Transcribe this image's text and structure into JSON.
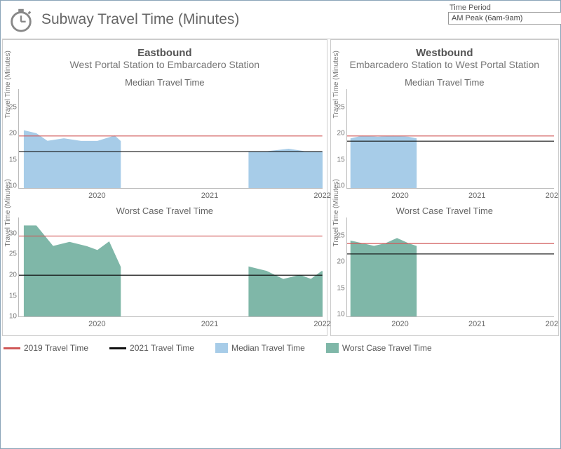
{
  "header": {
    "title": "Subway Travel Time (Minutes)",
    "time_period_label": "Time Period",
    "time_period_value": "AM Peak (6am-9am)"
  },
  "colors": {
    "median_area": "#a7cce8",
    "worst_area": "#7fb7a8",
    "line_2019": "#d05858",
    "line_2021": "#111111",
    "axis": "#bbbbbb",
    "text": "#666666"
  },
  "legend": [
    {
      "type": "line",
      "color": "#d05858",
      "label": "2019 Travel Time"
    },
    {
      "type": "line",
      "color": "#111111",
      "label": "2021 Travel Time"
    },
    {
      "type": "box",
      "color": "#a7cce8",
      "label": "Median Travel Time"
    },
    {
      "type": "box",
      "color": "#7fb7a8",
      "label": "Worst Case Travel Time"
    }
  ],
  "panels": [
    {
      "direction": "Eastbound",
      "subtitle": "West Portal Station to Embarcadero Station",
      "charts": [
        {
          "title": "Median Travel Time",
          "ylabel": "Travel Time (Minutes)",
          "ylim": [
            8,
            27
          ],
          "yticks": [
            10,
            15,
            20,
            25
          ],
          "xlim": [
            2019.3,
            2022.0
          ],
          "xticks": [
            2020,
            2021,
            2022
          ],
          "fill_color": "#a7cce8",
          "segments": [
            {
              "x": [
                2019.35,
                2019.45,
                2019.55,
                2019.7,
                2019.85,
                2020.0,
                2020.15,
                2020.2
              ],
              "y": [
                19,
                18.5,
                17,
                17.5,
                17,
                17,
                18,
                17
              ]
            },
            {
              "x": [
                2021.35,
                2021.5,
                2021.7,
                2021.85,
                2022.0
              ],
              "y": [
                15,
                15,
                15.5,
                15,
                15
              ]
            }
          ],
          "ref_lines": [
            {
              "color": "#d05858",
              "y": 18
            },
            {
              "color": "#111111",
              "y": 15
            }
          ]
        },
        {
          "title": "Worst Case Travel Time",
          "ylabel": "Travel Time (Minutes)",
          "ylim": [
            8,
            32
          ],
          "yticks": [
            10,
            15,
            20,
            25,
            30
          ],
          "xlim": [
            2019.3,
            2022.0
          ],
          "xticks": [
            2020,
            2021,
            2022
          ],
          "fill_color": "#7fb7a8",
          "segments": [
            {
              "x": [
                2019.35,
                2019.45,
                2019.6,
                2019.75,
                2019.9,
                2020.0,
                2020.1,
                2020.2
              ],
              "y": [
                30,
                30,
                25,
                26,
                25,
                24,
                26,
                20
              ]
            },
            {
              "x": [
                2021.35,
                2021.5,
                2021.65,
                2021.8,
                2021.9,
                2022.0
              ],
              "y": [
                20,
                19,
                17,
                18,
                17,
                19
              ]
            }
          ],
          "ref_lines": [
            {
              "color": "#d05858",
              "y": 27.5
            },
            {
              "color": "#111111",
              "y": 18
            }
          ]
        }
      ]
    },
    {
      "direction": "Westbound",
      "subtitle": "Embarcadero Station to West Portal Station",
      "charts": [
        {
          "title": "Median Travel Time",
          "ylabel": "Travel Time (Minutes)",
          "ylim": [
            8,
            27
          ],
          "yticks": [
            10,
            15,
            20,
            25
          ],
          "xlim": [
            2019.3,
            2022.0
          ],
          "xticks": [
            2020,
            2021,
            2022
          ],
          "fill_color": "#a7cce8",
          "segments": [
            {
              "x": [
                2019.35,
                2019.5,
                2019.7,
                2019.9,
                2020.1,
                2020.2
              ],
              "y": [
                17.5,
                18,
                17.8,
                18,
                17.8,
                17.5
              ]
            }
          ],
          "ref_lines": [
            {
              "color": "#d05858",
              "y": 18
            },
            {
              "color": "#111111",
              "y": 17
            }
          ]
        },
        {
          "title": "Worst Case Travel Time",
          "ylabel": "Travel Time (Minutes)",
          "ylim": [
            8,
            27
          ],
          "yticks": [
            10,
            15,
            20,
            25
          ],
          "xlim": [
            2019.3,
            2022.0
          ],
          "xticks": [
            2020,
            2021,
            2022
          ],
          "fill_color": "#7fb7a8",
          "segments": [
            {
              "x": [
                2019.35,
                2019.5,
                2019.65,
                2019.8,
                2019.95,
                2020.1,
                2020.2
              ],
              "y": [
                22.5,
                22,
                21.5,
                22,
                23,
                22,
                21.5
              ]
            }
          ],
          "ref_lines": [
            {
              "color": "#d05858",
              "y": 22
            },
            {
              "color": "#111111",
              "y": 20
            }
          ]
        }
      ]
    }
  ]
}
